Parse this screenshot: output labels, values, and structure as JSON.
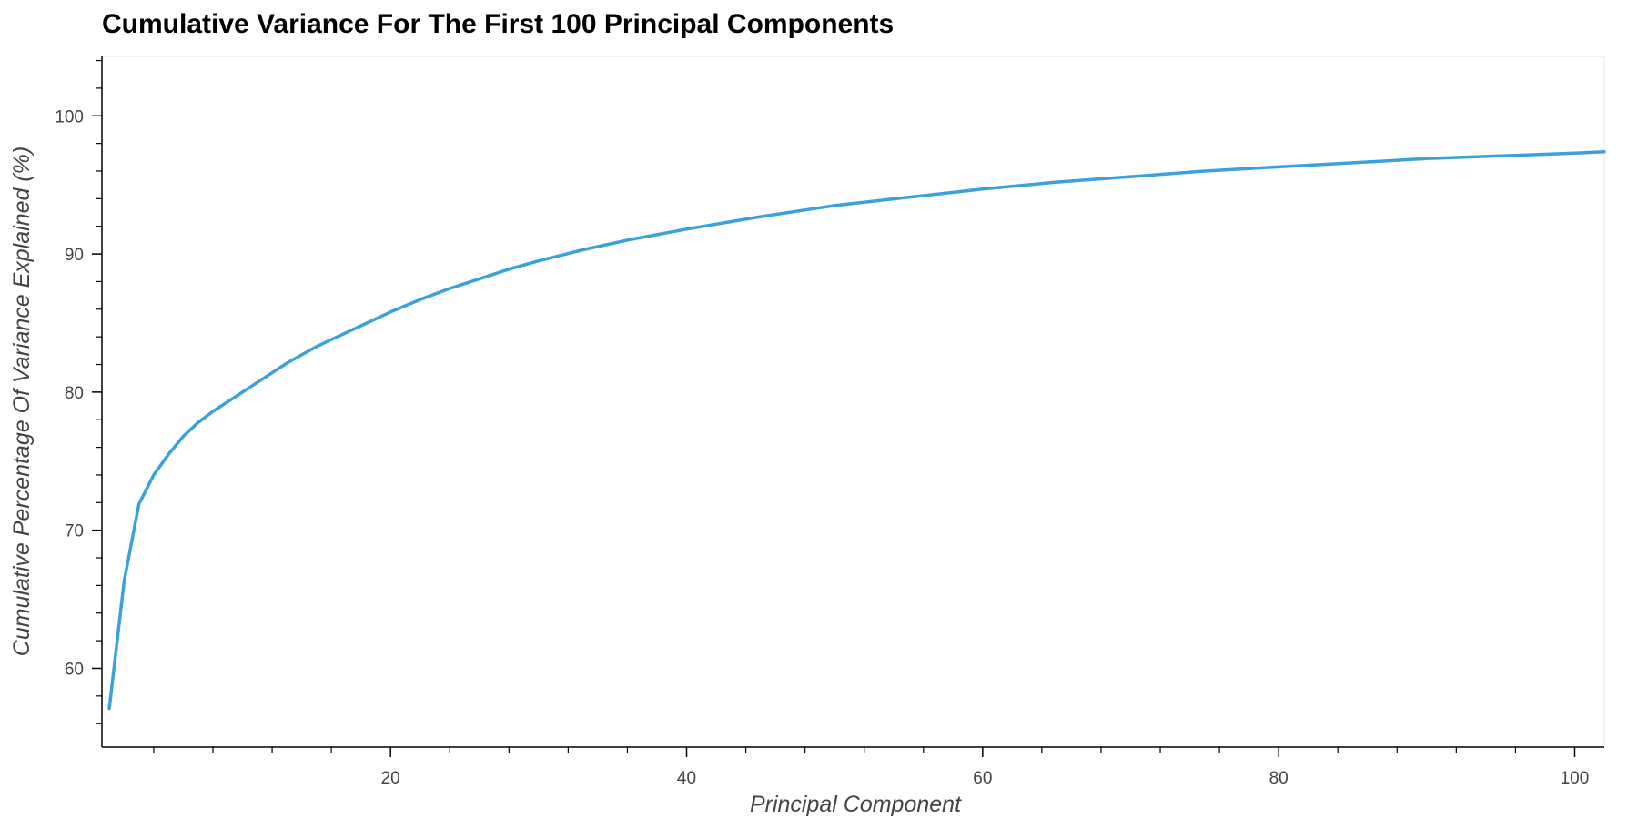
{
  "chart_data": {
    "type": "line",
    "title": "Cumulative Variance For The First 100 Principal Components",
    "xlabel": "Principal Component",
    "ylabel": "Cumulative Percentage Of Variance Explained (%)",
    "xlim": [
      0.5,
      102
    ],
    "ylim": [
      54.3,
      104.3
    ],
    "x_ticks": [
      "20",
      "40",
      "60",
      "80",
      "100"
    ],
    "y_ticks": [
      "60",
      "70",
      "80",
      "90",
      "100"
    ],
    "grid": false,
    "line_color": "#3aa2d8",
    "series": [
      {
        "x": [
          1,
          2,
          3,
          4,
          5,
          6,
          7,
          8,
          9,
          10,
          11,
          12,
          13,
          14,
          15,
          16,
          17,
          18,
          19,
          20,
          22,
          24,
          26,
          28,
          30,
          33,
          36,
          40,
          45,
          50,
          55,
          60,
          65,
          70,
          75,
          80,
          85,
          90,
          95,
          100,
          102
        ],
        "values": [
          57.1,
          66.3,
          71.9,
          74.0,
          75.5,
          76.8,
          77.8,
          78.6,
          79.3,
          80.0,
          80.7,
          81.4,
          82.1,
          82.7,
          83.3,
          83.8,
          84.3,
          84.8,
          85.3,
          85.8,
          86.7,
          87.5,
          88.2,
          88.9,
          89.5,
          90.3,
          91.0,
          91.8,
          92.7,
          93.5,
          94.1,
          94.7,
          95.2,
          95.6,
          96.0,
          96.3,
          96.6,
          96.9,
          97.1,
          97.3,
          97.4
        ]
      }
    ]
  }
}
